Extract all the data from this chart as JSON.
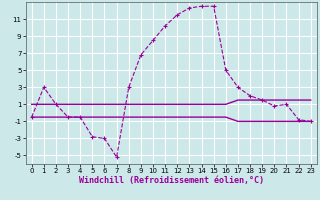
{
  "xlabel": "Windchill (Refroidissement éolien,°C)",
  "bg_color": "#cce8e8",
  "grid_color": "#ffffff",
  "line_color": "#990099",
  "line1_x": [
    0,
    1,
    2,
    3,
    4,
    5,
    6,
    7,
    8,
    9,
    10,
    11,
    12,
    13,
    14,
    15,
    16,
    17,
    18,
    19,
    20,
    21,
    22,
    23
  ],
  "line1_y": [
    -0.5,
    3.0,
    1.0,
    -0.5,
    -0.5,
    -2.8,
    -3.0,
    -5.2,
    3.0,
    6.8,
    8.5,
    10.2,
    11.5,
    12.3,
    12.5,
    12.5,
    5.0,
    3.0,
    2.0,
    1.5,
    0.8,
    1.0,
    -0.8,
    -1.0
  ],
  "line2_x": [
    0,
    3,
    4,
    5,
    6,
    7,
    8,
    9,
    10,
    11,
    12,
    13,
    14,
    15,
    16,
    17,
    18,
    19,
    20,
    21,
    22,
    23
  ],
  "line2_y": [
    1.0,
    1.0,
    1.0,
    1.0,
    1.0,
    1.0,
    1.0,
    1.0,
    1.0,
    1.0,
    1.0,
    1.0,
    1.0,
    1.0,
    1.0,
    1.5,
    1.5,
    1.5,
    1.5,
    1.5,
    1.5,
    1.5
  ],
  "line3_x": [
    0,
    3,
    4,
    5,
    6,
    7,
    8,
    9,
    10,
    11,
    12,
    13,
    14,
    15,
    16,
    17,
    18,
    19,
    20,
    21,
    22,
    23
  ],
  "line3_y": [
    -0.5,
    -0.5,
    -0.5,
    -0.5,
    -0.5,
    -0.5,
    -0.5,
    -0.5,
    -0.5,
    -0.5,
    -0.5,
    -0.5,
    -0.5,
    -0.5,
    -0.5,
    -1.0,
    -1.0,
    -1.0,
    -1.0,
    -1.0,
    -1.0,
    -1.0
  ],
  "ylim": [
    -6.0,
    13.0
  ],
  "xlim": [
    -0.5,
    23.5
  ],
  "yticks": [
    -5,
    -3,
    -1,
    1,
    3,
    5,
    7,
    9,
    11
  ],
  "xticks": [
    0,
    1,
    2,
    3,
    4,
    5,
    6,
    7,
    8,
    9,
    10,
    11,
    12,
    13,
    14,
    15,
    16,
    17,
    18,
    19,
    20,
    21,
    22,
    23
  ],
  "tick_fontsize": 5.0,
  "label_fontsize": 6.0
}
